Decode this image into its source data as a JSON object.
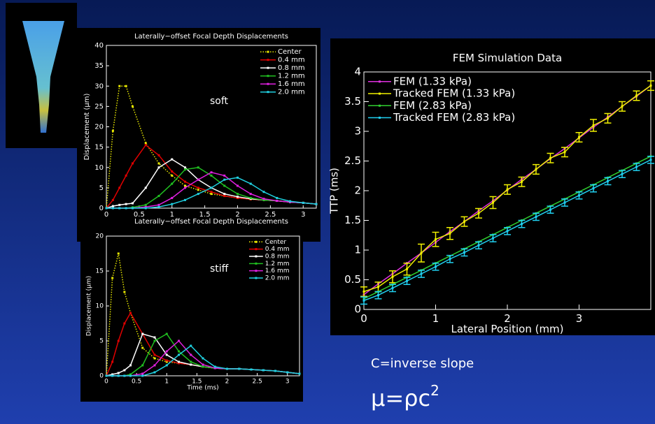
{
  "chart_data": [
    {
      "type": "line",
      "title": "Laterally−offset Focal Depth Displacements",
      "x_label": "Laterally−offset Focal Depth Displacements",
      "y_label": "Displacement (μm)",
      "annotation": "soft",
      "x": [
        0,
        0.1,
        0.2,
        0.3,
        0.4,
        0.6,
        0.8,
        1.0,
        1.2,
        1.4,
        1.6,
        1.8,
        2.0,
        2.2,
        2.4,
        2.6,
        2.8,
        3.0,
        3.2
      ],
      "xlim": [
        0,
        3.2
      ],
      "ylim": [
        0,
        40
      ],
      "xticks": [
        0,
        0.5,
        1,
        1.5,
        2,
        2.5,
        3
      ],
      "yticks": [
        0,
        5,
        10,
        15,
        20,
        25,
        30,
        35,
        40
      ],
      "legend": "upper right",
      "series": [
        {
          "name": "Center",
          "color": "#e8e800",
          "line_style": "dotted",
          "values": [
            0,
            19,
            30,
            30,
            25,
            16,
            11,
            8,
            5.5,
            4.5,
            3.5,
            3,
            2.5,
            2.2,
            2,
            1.8,
            1.5,
            1.3,
            1
          ]
        },
        {
          "name": "0.4 mm",
          "color": "#e00000",
          "line_style": "solid",
          "values": [
            0,
            2,
            5,
            8,
            11,
            15.5,
            13,
            9,
            6.5,
            5,
            4,
            3,
            2.5,
            2.2,
            2,
            1.8,
            1.5,
            1.3,
            1
          ]
        },
        {
          "name": "0.8 mm",
          "color": "#ffffff",
          "line_style": "solid",
          "values": [
            0,
            0.5,
            0.8,
            1,
            1.2,
            5,
            10,
            12,
            10,
            7,
            5,
            3.5,
            2.8,
            2.3,
            2,
            1.8,
            1.5,
            1.3,
            1
          ]
        },
        {
          "name": "1.2 mm",
          "color": "#20c020",
          "line_style": "solid",
          "values": [
            0,
            0,
            0,
            0,
            0.2,
            0.8,
            3,
            6,
            9.5,
            10,
            8,
            5.5,
            3.5,
            2.5,
            2,
            1.8,
            1.5,
            1.3,
            1
          ]
        },
        {
          "name": "1.6 mm",
          "color": "#e020e0",
          "line_style": "solid",
          "values": [
            0,
            0,
            0,
            0,
            0,
            0.3,
            0.8,
            2.5,
            5,
            7,
            8.8,
            8,
            5.5,
            3.5,
            2.3,
            1.8,
            1.5,
            1.3,
            1
          ]
        },
        {
          "name": "2.0 mm",
          "color": "#20d0e0",
          "line_style": "solid",
          "values": [
            0,
            0,
            0,
            0,
            0,
            0,
            0.3,
            1,
            2,
            3.5,
            5,
            7,
            7.5,
            6,
            4,
            2.5,
            1.7,
            1.3,
            1
          ]
        }
      ]
    },
    {
      "type": "line",
      "x_label": "Time (ms)",
      "y_label": "Displacement (μm)",
      "annotation": "stiff",
      "x": [
        0,
        0.1,
        0.2,
        0.3,
        0.4,
        0.6,
        0.8,
        1.0,
        1.2,
        1.4,
        1.6,
        1.8,
        2.0,
        2.2,
        2.4,
        2.6,
        2.8,
        3.0,
        3.2
      ],
      "xlim": [
        0,
        3.2
      ],
      "ylim": [
        0,
        20
      ],
      "xticks": [
        0,
        0.5,
        1,
        1.5,
        2,
        2.5,
        3
      ],
      "yticks": [
        0,
        5,
        10,
        15,
        20
      ],
      "legend": "upper right",
      "series": [
        {
          "name": "Center",
          "color": "#e8e800",
          "line_style": "dotted",
          "values": [
            0,
            14,
            17.5,
            12,
            9,
            4,
            2.5,
            2,
            1.8,
            1.6,
            1.3,
            1.1,
            1,
            1,
            0.9,
            0.8,
            0.7,
            0.5,
            0.3
          ]
        },
        {
          "name": "0.4 mm",
          "color": "#e00000",
          "line_style": "solid",
          "values": [
            0,
            2,
            5,
            7.5,
            9,
            6,
            3,
            2.2,
            1.8,
            1.6,
            1.3,
            1.1,
            1,
            1,
            0.9,
            0.8,
            0.7,
            0.5,
            0.3
          ]
        },
        {
          "name": "0.8 mm",
          "color": "#ffffff",
          "line_style": "solid",
          "values": [
            0,
            0.2,
            0.4,
            0.8,
            1.5,
            6,
            5.5,
            3,
            2,
            1.6,
            1.3,
            1.1,
            1,
            1,
            0.9,
            0.8,
            0.7,
            0.5,
            0.3
          ]
        },
        {
          "name": "1.2 mm",
          "color": "#20c020",
          "line_style": "solid",
          "values": [
            0,
            0,
            0,
            0,
            0.2,
            1.5,
            5,
            6,
            3.5,
            2,
            1.3,
            1.1,
            1,
            1,
            0.9,
            0.8,
            0.7,
            0.5,
            0.3
          ]
        },
        {
          "name": "1.6 mm",
          "color": "#e020e0",
          "line_style": "solid",
          "values": [
            0,
            0,
            0,
            0,
            0,
            0.3,
            1.5,
            3.5,
            5,
            3,
            1.6,
            1.1,
            1,
            1,
            0.9,
            0.8,
            0.7,
            0.5,
            0.3
          ]
        },
        {
          "name": "2.0 mm",
          "color": "#20d0e0",
          "line_style": "solid",
          "values": [
            0,
            0,
            0,
            0,
            0,
            0,
            0.5,
            1.5,
            3,
            4.3,
            2.5,
            1.3,
            1,
            1,
            0.9,
            0.8,
            0.7,
            0.5,
            0.3
          ]
        }
      ]
    },
    {
      "type": "line",
      "title": "FEM Simulation Data",
      "x_label": "Lateral Position (mm)",
      "y_label": "TTP (ms)",
      "x": [
        0,
        0.2,
        0.4,
        0.6,
        0.8,
        1.0,
        1.2,
        1.4,
        1.6,
        1.8,
        2.0,
        2.2,
        2.4,
        2.6,
        2.8,
        3.0,
        3.2,
        3.4,
        3.6,
        3.8,
        4.0
      ],
      "xlim": [
        0,
        4
      ],
      "ylim": [
        0,
        4
      ],
      "xticks": [
        0,
        1,
        2,
        3
      ],
      "yticks": [
        0,
        0.5,
        1,
        1.5,
        2,
        2.5,
        3,
        3.5,
        4
      ],
      "legend": "upper left",
      "series": [
        {
          "name": "FEM (1.33 kPa)",
          "color": "#e030e0",
          "line_style": "solid",
          "values": [
            0.25,
            0.43,
            0.6,
            0.78,
            0.95,
            1.13,
            1.31,
            1.48,
            1.66,
            1.83,
            2.01,
            2.19,
            2.36,
            2.54,
            2.71,
            2.89,
            3.07,
            3.24,
            3.42,
            3.59,
            3.77
          ]
        },
        {
          "name": "Tracked FEM (1.33 kPa)",
          "color": "#f0f000",
          "line_style": "solid",
          "values": [
            0.3,
            0.38,
            0.55,
            0.68,
            0.95,
            1.18,
            1.28,
            1.48,
            1.62,
            1.8,
            2.02,
            2.15,
            2.36,
            2.55,
            2.65,
            2.9,
            3.1,
            3.22,
            3.42,
            3.6,
            3.77
          ],
          "errors": [
            0.08,
            0.08,
            0.1,
            0.1,
            0.15,
            0.12,
            0.1,
            0.08,
            0.08,
            0.1,
            0.08,
            0.08,
            0.08,
            0.08,
            0.08,
            0.08,
            0.1,
            0.08,
            0.08,
            0.08,
            0.08
          ]
        },
        {
          "name": "FEM (2.83 kPa)",
          "color": "#30d030",
          "line_style": "solid",
          "values": [
            0.18,
            0.3,
            0.42,
            0.54,
            0.66,
            0.78,
            0.9,
            1.02,
            1.14,
            1.26,
            1.38,
            1.5,
            1.62,
            1.74,
            1.86,
            1.98,
            2.1,
            2.22,
            2.34,
            2.46,
            2.58
          ]
        },
        {
          "name": "Tracked FEM (2.83 kPa)",
          "color": "#20d0f0",
          "line_style": "solid",
          "values": [
            0.15,
            0.24,
            0.36,
            0.48,
            0.6,
            0.72,
            0.85,
            0.96,
            1.08,
            1.2,
            1.32,
            1.44,
            1.56,
            1.68,
            1.8,
            1.92,
            2.04,
            2.16,
            2.28,
            2.4,
            2.52
          ],
          "errors": [
            0.06,
            0.06,
            0.06,
            0.06,
            0.06,
            0.06,
            0.06,
            0.06,
            0.06,
            0.06,
            0.06,
            0.06,
            0.06,
            0.06,
            0.06,
            0.06,
            0.06,
            0.06,
            0.06,
            0.06,
            0.06
          ]
        }
      ]
    }
  ],
  "notes": {
    "slope_text": "C=inverse slope",
    "formula": "μ=ρc",
    "formula_superscript": "2"
  }
}
